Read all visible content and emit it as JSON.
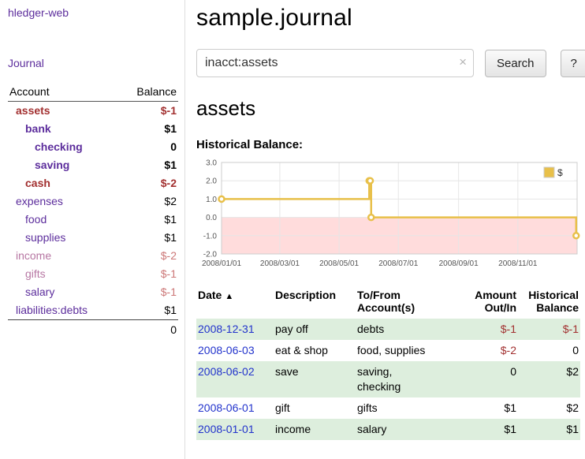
{
  "app": {
    "title": "hledger-web",
    "nav_journal": "Journal"
  },
  "sidebar": {
    "headers": {
      "account": "Account",
      "balance": "Balance"
    },
    "accounts": [
      {
        "name": "assets",
        "balance": "$-1"
      },
      {
        "name": "bank",
        "balance": "$1"
      },
      {
        "name": "checking",
        "balance": "0"
      },
      {
        "name": "saving",
        "balance": "$1"
      },
      {
        "name": "cash",
        "balance": "$-2"
      },
      {
        "name": "expenses",
        "balance": "$2"
      },
      {
        "name": "food",
        "balance": "$1"
      },
      {
        "name": "supplies",
        "balance": "$1"
      },
      {
        "name": "income",
        "balance": "$-2"
      },
      {
        "name": "gifts",
        "balance": "$-1"
      },
      {
        "name": "salary",
        "balance": "$-1"
      },
      {
        "name": "liabilities:debts",
        "balance": "$1"
      }
    ],
    "total": "0"
  },
  "main": {
    "title": "sample.journal",
    "search": {
      "value": "inacct:assets",
      "clear_icon": "×",
      "search_button": "Search",
      "help_button": "?"
    },
    "account_heading": "assets",
    "chart_title": "Historical Balance:"
  },
  "chart_data": {
    "type": "line",
    "step": true,
    "title": "Historical Balance",
    "legend_position": "top-right",
    "grid": true,
    "grid_color": "#e6e6e6",
    "negative_fill": "#ffdcdc",
    "ylim": [
      -2,
      3
    ],
    "yticks": [
      "3.0",
      "2.0",
      "1.0",
      "0.0",
      "-1.0",
      "-2.0"
    ],
    "xrange": [
      "2008-01-01",
      "2009-01-01"
    ],
    "xticks": [
      {
        "date": "2008-01-01",
        "label": "2008/01/01"
      },
      {
        "date": "2008-03-01",
        "label": "2008/03/01"
      },
      {
        "date": "2008-05-01",
        "label": "2008/05/01"
      },
      {
        "date": "2008-07-01",
        "label": "2008/07/01"
      },
      {
        "date": "2008-09-01",
        "label": "2008/09/01"
      },
      {
        "date": "2008-11-01",
        "label": "2008/11/01"
      }
    ],
    "series": [
      {
        "name": "$",
        "color": "#e8c04a",
        "points": [
          {
            "date": "2008-01-01",
            "value": 1
          },
          {
            "date": "2008-06-01",
            "value": 2
          },
          {
            "date": "2008-06-02",
            "value": 2
          },
          {
            "date": "2008-06-03",
            "value": 0
          },
          {
            "date": "2008-12-31",
            "value": -1
          }
        ]
      }
    ]
  },
  "register": {
    "headers": {
      "date": "Date",
      "sort_icon": "▲",
      "description": "Description",
      "tofrom_1": "To/From",
      "tofrom_2": "Account(s)",
      "amount_1": "Amount",
      "amount_2": "Out/In",
      "balance_1": "Historical",
      "balance_2": "Balance"
    },
    "rows": [
      {
        "date": "2008-12-31",
        "description": "pay off",
        "accounts": "debts",
        "amount": "$-1",
        "balance": "$-1"
      },
      {
        "date": "2008-06-03",
        "description": "eat & shop",
        "accounts": "food, supplies",
        "amount": "$-2",
        "balance": "0"
      },
      {
        "date": "2008-06-02",
        "description": "save",
        "accounts": "saving, checking",
        "amount": "0",
        "balance": "$2"
      },
      {
        "date": "2008-06-01",
        "description": "gift",
        "accounts": "gifts",
        "amount": "$1",
        "balance": "$2"
      },
      {
        "date": "2008-01-01",
        "description": "income",
        "accounts": "salary",
        "amount": "$1",
        "balance": "$1"
      }
    ]
  }
}
